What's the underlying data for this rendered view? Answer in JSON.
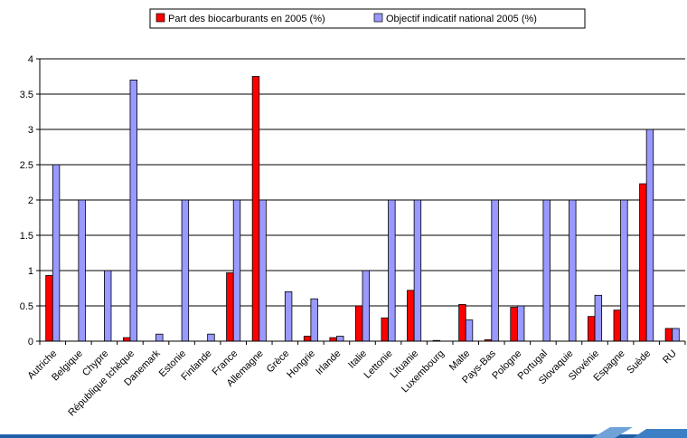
{
  "chart_data": {
    "type": "bar",
    "categories": [
      "Autriche",
      "Belgique",
      "Chypre",
      "République tchèque",
      "Danemark",
      "Estonie",
      "Finlande",
      "France",
      "Allemagne",
      "Grèce",
      "Hongrie",
      "Irlande",
      "Italie",
      "Lettonie",
      "Lituanie",
      "Luxembourg",
      "Malte",
      "Pays-Bas",
      "Pologne",
      "Portugal",
      "Slovaquie",
      "Slovénie",
      "Espagne",
      "Suède",
      "RU"
    ],
    "series": [
      {
        "name": "Part des biocarburants en 2005 (%)",
        "color": "#ff0000",
        "values": [
          0.93,
          0,
          0,
          0.05,
          0,
          0,
          0,
          0.97,
          3.75,
          0,
          0.07,
          0.05,
          0.5,
          0.33,
          0.72,
          0.01,
          0.52,
          0.02,
          0.48,
          0,
          0,
          0.35,
          0.44,
          2.23,
          0.18
        ]
      },
      {
        "name": "Objectif indicatif national 2005 (%)",
        "color": "#9999ff",
        "values": [
          2.5,
          2,
          1,
          3.7,
          0.1,
          2,
          0.1,
          2,
          2,
          0.7,
          0.6,
          0.07,
          1,
          2,
          2,
          0,
          0.3,
          2,
          0.5,
          2,
          2,
          0.65,
          2,
          3,
          0.18
        ]
      }
    ],
    "title": "",
    "xlabel": "",
    "ylabel": "",
    "ylim": [
      0,
      4
    ],
    "yticks": [
      "0",
      "0.5",
      "1",
      "1.5",
      "2",
      "2.5",
      "3",
      "3.5",
      "4"
    ],
    "grid": true,
    "legend_position": "top-center"
  },
  "footer_colors": [
    "#1f5fa8",
    "#3d7fc4",
    "#6fa3d8"
  ]
}
